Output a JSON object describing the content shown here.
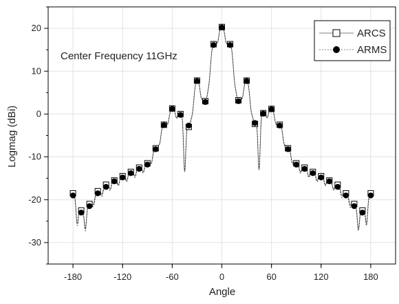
{
  "chart_data": {
    "type": "line",
    "title": "",
    "annotation": "Center Frequency 11GHz",
    "xlabel": "Angle",
    "ylabel": "Logmag (dBi)",
    "xlim": [
      -210,
      210
    ],
    "ylim": [
      -35,
      25
    ],
    "xticks": [
      -180,
      -120,
      -60,
      0,
      60,
      120,
      180
    ],
    "xtick_labels": [
      "-180",
      "-120",
      "-60",
      "0",
      "60",
      "120",
      "180"
    ],
    "yticks": [
      -30,
      -20,
      -10,
      0,
      10,
      20
    ],
    "ytick_labels": [
      "-30",
      "-20",
      "-10",
      "0",
      "10",
      "20"
    ],
    "grid": true,
    "legend_position": "top-right",
    "series": [
      {
        "name": "ARCS",
        "marker": "open-square",
        "x": [
          -180,
          -170,
          -160,
          -150,
          -140,
          -130,
          -120,
          -110,
          -100,
          -90,
          -80,
          -70,
          -60,
          -50,
          -40,
          -30,
          -20,
          -10,
          0,
          10,
          20,
          30,
          40,
          50,
          60,
          70,
          80,
          90,
          100,
          110,
          120,
          130,
          140,
          150,
          160,
          170,
          180
        ],
        "y": [
          -18.5,
          -22.5,
          -21,
          -18,
          -16.5,
          -15.5,
          -14.5,
          -13.5,
          -12.5,
          -11.5,
          -8,
          -2.5,
          1.3,
          0,
          -3,
          7.8,
          3,
          16.3,
          20.3,
          16.3,
          3.2,
          7.8,
          -2.3,
          0.2,
          1.2,
          -2.5,
          -8,
          -11.5,
          -12.5,
          -13.5,
          -14.5,
          -15.5,
          -16.5,
          -18.5,
          -21,
          -22.5,
          -18.5
        ]
      },
      {
        "name": "ARMS",
        "marker": "filled-circle",
        "x": [
          -180,
          -170,
          -160,
          -150,
          -140,
          -130,
          -120,
          -110,
          -100,
          -90,
          -80,
          -70,
          -60,
          -50,
          -40,
          -30,
          -20,
          -10,
          0,
          10,
          20,
          30,
          40,
          50,
          60,
          70,
          80,
          90,
          100,
          110,
          120,
          130,
          140,
          150,
          160,
          170,
          180
        ],
        "y": [
          -19,
          -23,
          -21.5,
          -18.5,
          -17,
          -15.7,
          -14.8,
          -13.8,
          -12.8,
          -11.8,
          -8.2,
          -2.6,
          1.2,
          -0.2,
          -2.7,
          7.7,
          2.8,
          16.1,
          20.2,
          16.1,
          3,
          7.7,
          -2.1,
          0.1,
          1.1,
          -2.7,
          -8.2,
          -11.8,
          -12.8,
          -13.8,
          -14.8,
          -15.7,
          -17,
          -19,
          -21.5,
          -23,
          -19
        ]
      }
    ]
  }
}
